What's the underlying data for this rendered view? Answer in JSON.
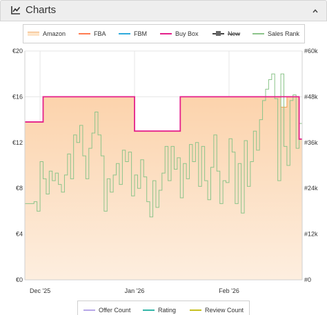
{
  "header": {
    "title": "Charts",
    "icon": "chart-line-icon",
    "toggle_icon": "chevron-up-icon"
  },
  "legend": [
    {
      "label": "Amazon",
      "color": "#f5a04a",
      "style": "area"
    },
    {
      "label": "FBA",
      "color": "#ff7b50",
      "style": "line"
    },
    {
      "label": "FBM",
      "color": "#2eaadc",
      "style": "line"
    },
    {
      "label": "Buy Box",
      "color": "#e4208a",
      "style": "line"
    },
    {
      "label": "New",
      "color": "#555555",
      "style": "marker",
      "struck": true
    },
    {
      "label": "Sales Rank",
      "color": "#8bc48a",
      "style": "line"
    }
  ],
  "bottom_legend": [
    {
      "label": "Offer Count",
      "color": "#b7a7e8"
    },
    {
      "label": "Rating",
      "color": "#33b6a8"
    },
    {
      "label": "Review Count",
      "color": "#c6c020"
    }
  ],
  "chart_data": {
    "type": "line",
    "x_tick_labels": [
      "Dec '25",
      "Jan '26",
      "Feb '26"
    ],
    "x_ticks_day": [
      7,
      38,
      69
    ],
    "xlim_day": [
      2,
      93
    ],
    "y_left": {
      "ticks": [
        "€0",
        "€4",
        "€8",
        "€12",
        "€16",
        "€20"
      ],
      "ylim": [
        0,
        20
      ]
    },
    "y_right": {
      "ticks": [
        "#0",
        "#12k",
        "#24k",
        "#36k",
        "#48k",
        "#60k"
      ],
      "ylim": [
        0,
        60000
      ]
    },
    "grid": true,
    "legend_position": "top",
    "series": [
      {
        "name": "Amazon",
        "axis": "left",
        "type": "area",
        "color": "#f5a04a",
        "points": [
          [
            2,
            13.8
          ],
          [
            8,
            13.8
          ],
          [
            8,
            16
          ],
          [
            38,
            16
          ],
          [
            38,
            13
          ],
          [
            53,
            13
          ],
          [
            53,
            16
          ],
          [
            86,
            16
          ],
          [
            86,
            15.1
          ],
          [
            88,
            15.1
          ],
          [
            88,
            16
          ],
          [
            92,
            16
          ],
          [
            92,
            12.3
          ],
          [
            93,
            12.3
          ]
        ]
      },
      {
        "name": "Buy Box",
        "axis": "left",
        "type": "step",
        "color": "#e4208a",
        "points": [
          [
            2,
            13.8
          ],
          [
            8,
            13.8
          ],
          [
            8,
            16
          ],
          [
            38,
            16
          ],
          [
            38,
            13
          ],
          [
            53,
            13
          ],
          [
            53,
            16
          ],
          [
            92,
            16
          ],
          [
            92,
            12.3
          ],
          [
            93,
            12.3
          ]
        ]
      },
      {
        "name": "Sales Rank",
        "axis": "right",
        "type": "step",
        "color": "#8bc48a",
        "points": [
          [
            2,
            20000
          ],
          [
            5,
            20000
          ],
          [
            5,
            20500
          ],
          [
            6,
            20500
          ],
          [
            6,
            18000
          ],
          [
            7,
            18000
          ],
          [
            7,
            31000
          ],
          [
            8,
            31000
          ],
          [
            8,
            26500
          ],
          [
            9,
            26500
          ],
          [
            9,
            22500
          ],
          [
            10,
            22500
          ],
          [
            10,
            28500
          ],
          [
            11,
            28500
          ],
          [
            11,
            26000
          ],
          [
            12,
            26000
          ],
          [
            12,
            28000
          ],
          [
            13,
            28000
          ],
          [
            13,
            25000
          ],
          [
            14,
            25000
          ],
          [
            14,
            23000
          ],
          [
            15,
            23000
          ],
          [
            15,
            27500
          ],
          [
            16,
            27500
          ],
          [
            16,
            33000
          ],
          [
            17,
            33000
          ],
          [
            17,
            26500
          ],
          [
            18,
            26500
          ],
          [
            18,
            38000
          ],
          [
            19,
            38000
          ],
          [
            19,
            36000
          ],
          [
            20,
            36000
          ],
          [
            20,
            40500
          ],
          [
            21,
            40500
          ],
          [
            21,
            32500
          ],
          [
            22,
            32500
          ],
          [
            22,
            26500
          ],
          [
            23,
            26500
          ],
          [
            23,
            34500
          ],
          [
            24,
            34500
          ],
          [
            24,
            38500
          ],
          [
            25,
            38500
          ],
          [
            25,
            44000
          ],
          [
            26,
            44000
          ],
          [
            26,
            38000
          ],
          [
            27,
            38000
          ],
          [
            27,
            32500
          ],
          [
            28,
            32500
          ],
          [
            28,
            18000
          ],
          [
            29,
            18000
          ],
          [
            29,
            26500
          ],
          [
            30,
            26500
          ],
          [
            30,
            23000
          ],
          [
            31,
            23000
          ],
          [
            31,
            27500
          ],
          [
            32,
            27500
          ],
          [
            32,
            30500
          ],
          [
            33,
            30500
          ],
          [
            33,
            25000
          ],
          [
            34,
            25000
          ],
          [
            34,
            34000
          ],
          [
            35,
            34000
          ],
          [
            35,
            31000
          ],
          [
            36,
            31000
          ],
          [
            36,
            33500
          ],
          [
            37,
            33500
          ],
          [
            37,
            22000
          ],
          [
            38,
            22000
          ],
          [
            38,
            27500
          ],
          [
            39,
            27500
          ],
          [
            39,
            24000
          ],
          [
            40,
            24000
          ],
          [
            40,
            31500
          ],
          [
            41,
            31500
          ],
          [
            41,
            27000
          ],
          [
            42,
            27000
          ],
          [
            42,
            20500
          ],
          [
            43,
            20500
          ],
          [
            43,
            16500
          ],
          [
            44,
            16500
          ],
          [
            44,
            26000
          ],
          [
            45,
            26000
          ],
          [
            45,
            19000
          ],
          [
            46,
            19000
          ],
          [
            46,
            23500
          ],
          [
            47,
            23500
          ],
          [
            47,
            28000
          ],
          [
            48,
            28000
          ],
          [
            48,
            35000
          ],
          [
            49,
            35000
          ],
          [
            49,
            26000
          ],
          [
            50,
            26000
          ],
          [
            50,
            35000
          ],
          [
            51,
            35000
          ],
          [
            51,
            29000
          ],
          [
            52,
            29000
          ],
          [
            52,
            32000
          ],
          [
            53,
            32000
          ],
          [
            53,
            21500
          ],
          [
            54,
            21500
          ],
          [
            54,
            30500
          ],
          [
            55,
            30500
          ],
          [
            55,
            26500
          ],
          [
            56,
            26500
          ],
          [
            56,
            35500
          ],
          [
            57,
            35500
          ],
          [
            57,
            31000
          ],
          [
            58,
            31000
          ],
          [
            58,
            36000
          ],
          [
            59,
            36000
          ],
          [
            59,
            24500
          ],
          [
            60,
            24500
          ],
          [
            60,
            35000
          ],
          [
            61,
            35000
          ],
          [
            61,
            26000
          ],
          [
            62,
            26000
          ],
          [
            62,
            21000
          ],
          [
            63,
            21000
          ],
          [
            63,
            29500
          ],
          [
            64,
            29500
          ],
          [
            64,
            38000
          ],
          [
            65,
            38000
          ],
          [
            65,
            28500
          ],
          [
            66,
            28500
          ],
          [
            66,
            20000
          ],
          [
            67,
            20000
          ],
          [
            67,
            26000
          ],
          [
            68,
            26000
          ],
          [
            68,
            25500
          ],
          [
            69,
            25500
          ],
          [
            69,
            37000
          ],
          [
            70,
            37000
          ],
          [
            70,
            33500
          ],
          [
            71,
            33500
          ],
          [
            71,
            20000
          ],
          [
            72,
            20000
          ],
          [
            72,
            30500
          ],
          [
            73,
            30500
          ],
          [
            73,
            17500
          ],
          [
            74,
            17500
          ],
          [
            74,
            36500
          ],
          [
            75,
            36500
          ],
          [
            75,
            24500
          ],
          [
            76,
            24500
          ],
          [
            76,
            31000
          ],
          [
            77,
            31000
          ],
          [
            77,
            39000
          ],
          [
            78,
            39000
          ],
          [
            78,
            34000
          ],
          [
            79,
            34000
          ],
          [
            79,
            42000
          ],
          [
            80,
            42000
          ],
          [
            80,
            47000
          ],
          [
            81,
            47000
          ],
          [
            81,
            50000
          ],
          [
            82,
            50000
          ],
          [
            82,
            52500
          ],
          [
            83,
            52500
          ],
          [
            83,
            54000
          ],
          [
            84,
            54000
          ],
          [
            84,
            47500
          ],
          [
            85,
            47500
          ],
          [
            85,
            26000
          ],
          [
            86,
            26000
          ],
          [
            86,
            54000
          ],
          [
            87,
            54000
          ],
          [
            87,
            35000
          ],
          [
            88,
            35000
          ],
          [
            88,
            30000
          ],
          [
            89,
            30000
          ],
          [
            89,
            47000
          ],
          [
            90,
            47000
          ],
          [
            90,
            48500
          ],
          [
            91,
            48500
          ],
          [
            91,
            34500
          ],
          [
            92,
            34500
          ],
          [
            92,
            41000
          ],
          [
            93,
            41000
          ]
        ]
      }
    ]
  }
}
